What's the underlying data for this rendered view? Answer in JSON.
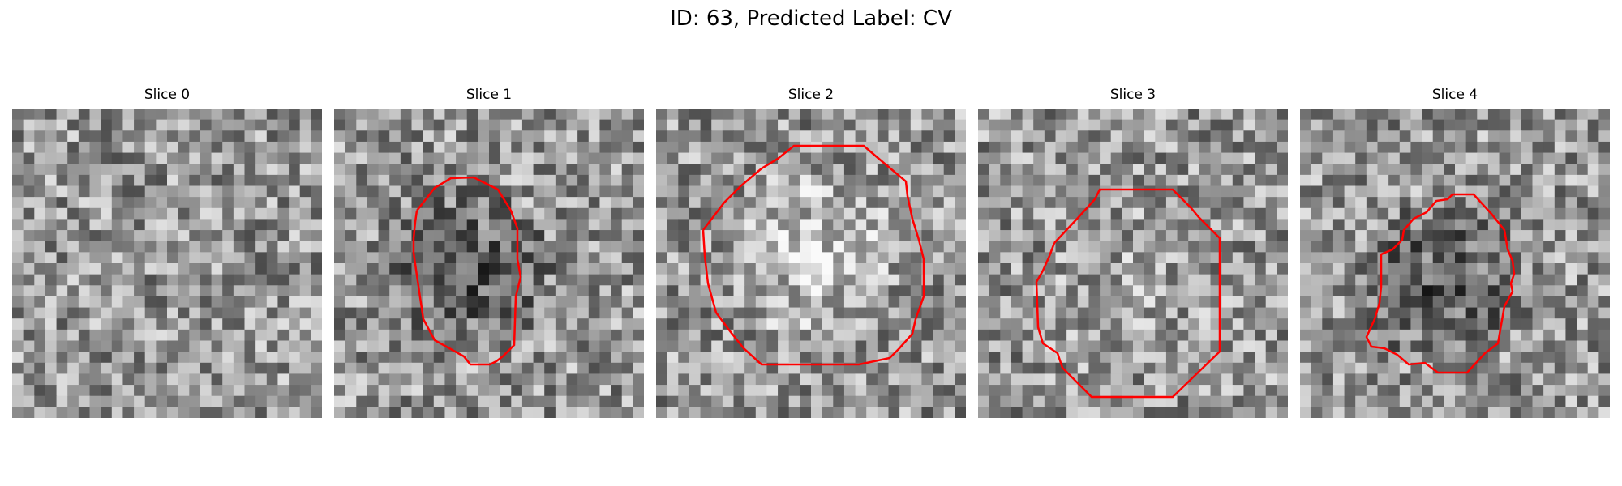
{
  "figure": {
    "title": "ID: 63, Predicted Label: CV",
    "contour_color": "#ff0000"
  },
  "panels": [
    {
      "title": "Slice 0",
      "seed": 11,
      "center_tone": 0,
      "has_contour": false
    },
    {
      "title": "Slice 1",
      "seed": 23,
      "center_tone": -70,
      "has_contour": true
    },
    {
      "title": "Slice 2",
      "seed": 37,
      "center_tone": 55,
      "has_contour": true
    },
    {
      "title": "Slice 3",
      "seed": 41,
      "center_tone": 15,
      "has_contour": true
    },
    {
      "title": "Slice 4",
      "seed": 53,
      "center_tone": -65,
      "has_contour": true
    }
  ]
}
